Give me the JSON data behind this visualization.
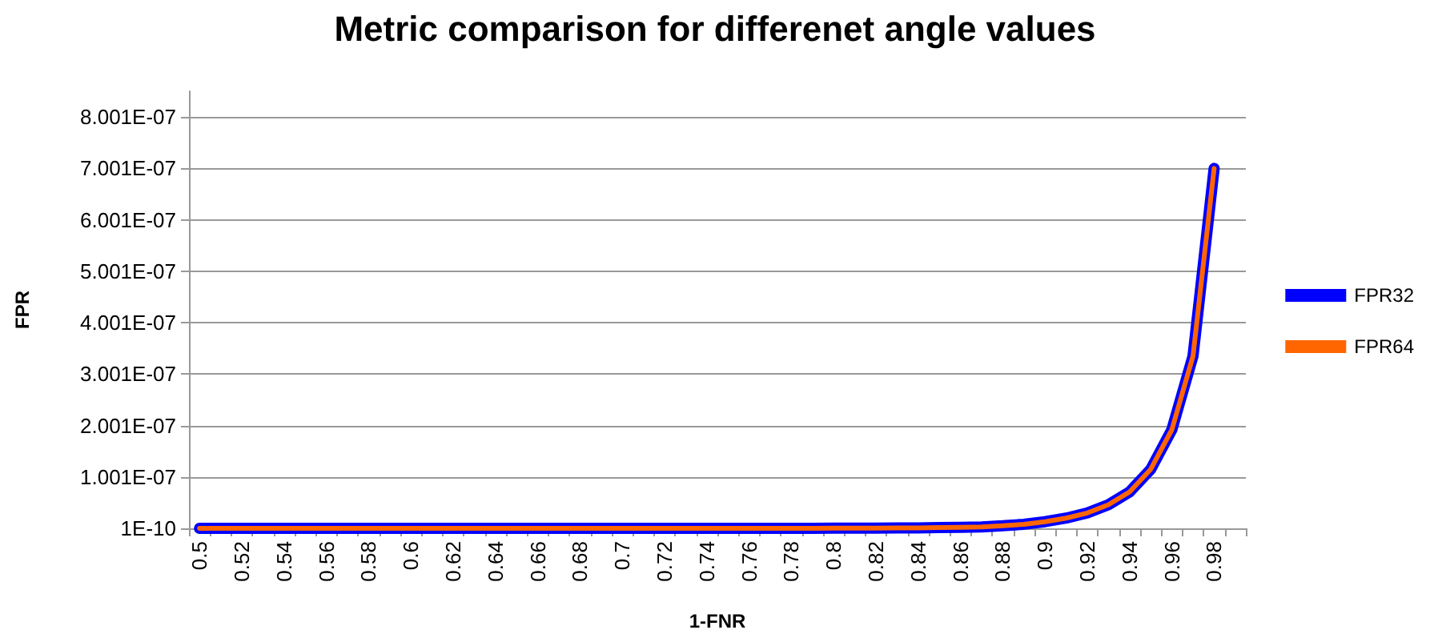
{
  "chart_data": {
    "type": "line",
    "title": "Metric comparison for differenet angle values",
    "xlabel": "1-FNR",
    "ylabel": "FPR",
    "categories": [
      "0.5",
      null,
      "0.52",
      null,
      "0.54",
      null,
      "0.56",
      null,
      "0.58",
      null,
      "0.6",
      null,
      "0.62",
      null,
      "0.64",
      null,
      "0.66",
      null,
      "0.68",
      null,
      "0.7",
      null,
      "0.72",
      null,
      "0.74",
      null,
      "0.76",
      null,
      "0.78",
      null,
      "0.8",
      null,
      "0.82",
      null,
      "0.84",
      null,
      "0.86",
      null,
      "0.88",
      null,
      "0.9",
      null,
      "0.92",
      null,
      "0.94",
      null,
      "0.96",
      null,
      "0.98",
      null
    ],
    "series": [
      {
        "name": "FPR32",
        "color": "#0000ff",
        "values": [
          1e-10,
          1e-10,
          1e-10,
          1e-10,
          1e-10,
          1e-10,
          1e-10,
          1e-10,
          1e-10,
          1e-10,
          1e-10,
          1e-10,
          1e-10,
          1e-10,
          1e-10,
          1e-10,
          1e-10,
          1e-10,
          1e-10,
          1e-10,
          1e-10,
          1e-10,
          1e-10,
          1e-10,
          1e-10,
          1e-10,
          1e-10,
          1e-10,
          1e-10,
          2e-10,
          3e-10,
          4e-10,
          5e-10,
          7e-10,
          1e-09,
          1.5e-09,
          2e-09,
          3e-09,
          5e-09,
          8e-09,
          1.3e-08,
          2e-08,
          3e-08,
          4.6e-08,
          7.1e-08,
          1.15e-07,
          1.92e-07,
          3.35e-07,
          7e-07,
          null
        ]
      },
      {
        "name": "FPR64",
        "color": "#ff6600",
        "values": [
          1e-10,
          1e-10,
          1e-10,
          1e-10,
          1e-10,
          1e-10,
          1e-10,
          1e-10,
          1e-10,
          1e-10,
          1e-10,
          1e-10,
          1e-10,
          1e-10,
          1e-10,
          1e-10,
          1e-10,
          1e-10,
          1e-10,
          1e-10,
          1e-10,
          1e-10,
          1e-10,
          1e-10,
          1e-10,
          1e-10,
          1e-10,
          1e-10,
          1e-10,
          2e-10,
          3e-10,
          4e-10,
          5e-10,
          7e-10,
          1e-09,
          1.5e-09,
          2e-09,
          3e-09,
          5e-09,
          8e-09,
          1.3e-08,
          2e-08,
          3e-08,
          4.6e-08,
          7.1e-08,
          1.15e-07,
          1.92e-07,
          3.35e-07,
          7e-07,
          null
        ]
      }
    ],
    "ylim": [
      1e-10,
      8.5e-07
    ],
    "yticks": [
      {
        "value": 1e-10,
        "label": "1E-10"
      },
      {
        "value": 1.001e-07,
        "label": "1.001E-07"
      },
      {
        "value": 2.001e-07,
        "label": "2.001E-07"
      },
      {
        "value": 3.001e-07,
        "label": "3.001E-07"
      },
      {
        "value": 4.001e-07,
        "label": "4.001E-07"
      },
      {
        "value": 5.001e-07,
        "label": "5.001E-07"
      },
      {
        "value": 6.001e-07,
        "label": "6.001E-07"
      },
      {
        "value": 7.001e-07,
        "label": "7.001E-07"
      },
      {
        "value": 8.001e-07,
        "label": "8.001E-07"
      }
    ],
    "grid": "y",
    "legend": "right",
    "marker": "none",
    "line_style": "solid"
  }
}
